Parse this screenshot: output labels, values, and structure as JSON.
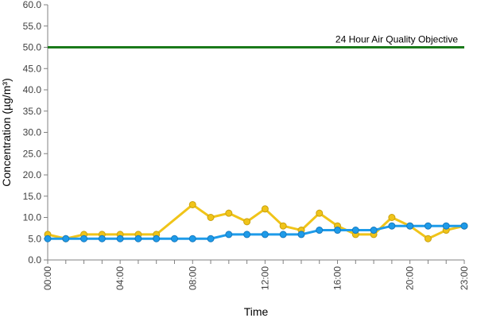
{
  "chart_data": {
    "type": "line",
    "title": "",
    "xlabel": "Time",
    "ylabel": "Concentration (µg/m³)",
    "ylim": [
      0,
      60
    ],
    "y_ticks": [
      "0.0",
      "5.0",
      "10.0",
      "15.0",
      "20.0",
      "25.0",
      "30.0",
      "35.0",
      "40.0",
      "45.0",
      "50.0",
      "55.0",
      "60.0"
    ],
    "x": [
      "00:00",
      "01:00",
      "02:00",
      "03:00",
      "04:00",
      "05:00",
      "06:00",
      "07:00",
      "08:00",
      "09:00",
      "10:00",
      "11:00",
      "12:00",
      "13:00",
      "14:00",
      "15:00",
      "16:00",
      "17:00",
      "18:00",
      "19:00",
      "20:00",
      "21:00",
      "22:00",
      "23:00"
    ],
    "x_tick_labels": [
      "00:00",
      "04:00",
      "08:00",
      "12:00",
      "16:00",
      "20:00",
      "23:00"
    ],
    "grid": false,
    "legend": "none",
    "series": [
      {
        "color": "#f0c419",
        "values": [
          6,
          5,
          6,
          6,
          6,
          6,
          6,
          null,
          13,
          10,
          11,
          9,
          12,
          8,
          7,
          11,
          8,
          6,
          6,
          10,
          8,
          5,
          7,
          8
        ]
      },
      {
        "color": "#1e9be9",
        "values": [
          5,
          5,
          5,
          5,
          5,
          5,
          5,
          5,
          5,
          5,
          6,
          6,
          6,
          6,
          6,
          7,
          7,
          7,
          7,
          8,
          8,
          8,
          8,
          8
        ]
      }
    ],
    "reference_line": {
      "value": 50,
      "label": "24 Hour Air Quality Objective",
      "color": "#1a7a1a"
    }
  }
}
